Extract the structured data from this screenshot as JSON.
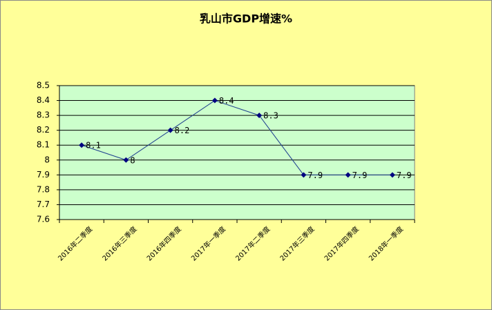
{
  "chart_data": {
    "type": "line",
    "title": "乳山市GDP增速%",
    "categories": [
      "2016年二季度",
      "2016年三季度",
      "2016年四季度",
      "2017年一季度",
      "2017年二季度",
      "2017年三季度",
      "2017年四季度",
      "2018年一季度"
    ],
    "values": [
      8.1,
      8,
      8.2,
      8.4,
      8.3,
      7.9,
      7.9,
      7.9
    ],
    "color": "#1f3f8f",
    "marker_color": "#000080",
    "ylim": [
      7.6,
      8.5
    ],
    "yticks": [
      7.6,
      7.7,
      7.8,
      7.9,
      8,
      8.1,
      8.2,
      8.3,
      8.4,
      8.5
    ],
    "grid": true
  }
}
